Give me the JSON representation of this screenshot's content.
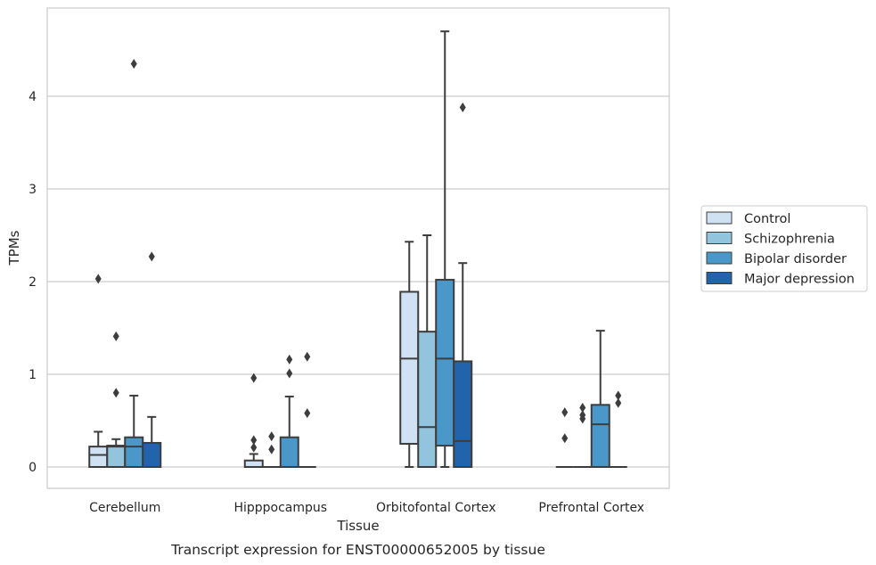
{
  "caption": "Transcript expression for ENST00000652005 by tissue",
  "chart_data": {
    "type": "box",
    "xlabel": "Tissue",
    "ylabel": "TPMs",
    "ylim": [
      -0.23,
      4.95
    ],
    "yticks": [
      0,
      1,
      2,
      3,
      4
    ],
    "grid": "horizontal",
    "legend_position": "right",
    "categories": [
      "Cerebellum",
      "Hipppocampus",
      "Orbitofontal Cortex",
      "Prefrontal Cortex"
    ],
    "series": [
      {
        "name": "Control",
        "color": "#cfe1f2",
        "boxes": [
          {
            "q1": 0,
            "median": 0.13,
            "q3": 0.22,
            "whisker_low": 0,
            "whisker_high": 0.38,
            "outliers": [
              2.03
            ]
          },
          {
            "q1": 0,
            "median": 0,
            "q3": 0.07,
            "whisker_low": 0,
            "whisker_high": 0.14,
            "outliers": [
              0.21,
              0.29,
              0.96
            ]
          },
          {
            "q1": 0.25,
            "median": 1.17,
            "q3": 1.89,
            "whisker_low": 0,
            "whisker_high": 2.43,
            "outliers": []
          },
          {
            "q1": 0,
            "median": 0,
            "q3": 0,
            "whisker_low": 0,
            "whisker_high": 0,
            "outliers": [
              0.31,
              0.59
            ]
          }
        ]
      },
      {
        "name": "Schizophrenia",
        "color": "#93c4de",
        "boxes": [
          {
            "q1": 0,
            "median": 0.22,
            "q3": 0.23,
            "whisker_low": 0,
            "whisker_high": 0.3,
            "outliers": [
              0.8,
              1.41
            ]
          },
          {
            "q1": 0,
            "median": 0,
            "q3": 0,
            "whisker_low": 0,
            "whisker_high": 0,
            "outliers": [
              0.19,
              0.33
            ]
          },
          {
            "q1": 0,
            "median": 0.43,
            "q3": 1.46,
            "whisker_low": 0,
            "whisker_high": 2.5,
            "outliers": []
          },
          {
            "q1": 0,
            "median": 0,
            "q3": 0,
            "whisker_low": 0,
            "whisker_high": 0,
            "outliers": [
              0.52,
              0.56,
              0.64
            ]
          }
        ]
      },
      {
        "name": "Bipolar disorder",
        "color": "#4a98c9",
        "boxes": [
          {
            "q1": 0,
            "median": 0.22,
            "q3": 0.32,
            "whisker_low": 0,
            "whisker_high": 0.77,
            "outliers": [
              4.35
            ]
          },
          {
            "q1": 0,
            "median": 0,
            "q3": 0.32,
            "whisker_low": 0,
            "whisker_high": 0.76,
            "outliers": [
              1.01,
              1.16
            ]
          },
          {
            "q1": 0.23,
            "median": 1.17,
            "q3": 2.02,
            "whisker_low": 0,
            "whisker_high": 4.7,
            "outliers": []
          },
          {
            "q1": 0,
            "median": 0.46,
            "q3": 0.67,
            "whisker_low": 0,
            "whisker_high": 1.47,
            "outliers": []
          }
        ]
      },
      {
        "name": "Major depression",
        "color": "#2164ab",
        "boxes": [
          {
            "q1": 0,
            "median": 0.26,
            "q3": 0.26,
            "whisker_low": 0,
            "whisker_high": 0.54,
            "outliers": [
              2.27
            ]
          },
          {
            "q1": 0,
            "median": 0,
            "q3": 0,
            "whisker_low": 0,
            "whisker_high": 0,
            "outliers": [
              0.58,
              1.19
            ]
          },
          {
            "q1": 0,
            "median": 0.28,
            "q3": 1.14,
            "whisker_low": 0,
            "whisker_high": 2.2,
            "outliers": [
              3.88
            ]
          },
          {
            "q1": 0,
            "median": 0,
            "q3": 0,
            "whisker_low": 0,
            "whisker_high": 0,
            "outliers": [
              0.69,
              0.77
            ]
          }
        ]
      }
    ]
  }
}
